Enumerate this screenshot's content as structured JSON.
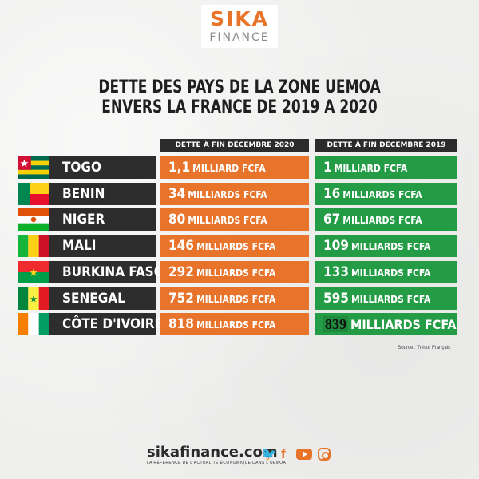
{
  "brand": {
    "name": "SIKA",
    "sub": "FINANCE"
  },
  "title": {
    "line1": "DETTE DES PAYS DE LA ZONE UEMOA",
    "line2": "ENVERS LA FRANCE DE 2019 A 2020"
  },
  "headers": {
    "col2020": "DETTE À FIN DÉCEMBRE 2020",
    "col2019": "DETTE À FIN DÉCEMBRE 2019"
  },
  "colors": {
    "orange": "#e8732a",
    "green": "#249c46",
    "dark": "#2d2d2d"
  },
  "chart_data": {
    "type": "table",
    "title": "DETTE DES PAYS DE LA ZONE UEMOA ENVERS LA FRANCE DE 2019 A 2020",
    "columns": [
      "DETTE À FIN DÉCEMBRE 2020",
      "DETTE À FIN DÉCEMBRE 2019"
    ],
    "rows": [
      {
        "country": "TOGO",
        "flag": "togo-flag",
        "v2020": "1,1",
        "u2020": "MILLIARD FCFA",
        "v2019": "1",
        "u2019": "MILLIARD FCFA"
      },
      {
        "country": "BENIN",
        "flag": "benin-flag",
        "v2020": "34",
        "u2020": "MILLIARDS FCFA",
        "v2019": "16",
        "u2019": "MILLIARDS FCFA"
      },
      {
        "country": "NIGER",
        "flag": "niger-flag",
        "v2020": "80",
        "u2020": "MILLIARDS FCFA",
        "v2019": "67",
        "u2019": "MILLIARDS FCFA"
      },
      {
        "country": "MALI",
        "flag": "mali-flag",
        "v2020": "146",
        "u2020": "MILLIARDS FCFA",
        "v2019": "109",
        "u2019": "MILLIARDS FCFA"
      },
      {
        "country": "BURKINA FASO",
        "flag": "burkina-faso-flag",
        "v2020": "292",
        "u2020": "MILLIARDS FCFA",
        "v2019": "133",
        "u2019": "MILLIARDS FCFA"
      },
      {
        "country": "SENEGAL",
        "flag": "senegal-flag",
        "v2020": "752",
        "u2020": "MILLIARDS FCFA",
        "v2019": "595",
        "u2019": "MILLIARDS FCFA"
      },
      {
        "country": "CÔTE D'IVOIRE",
        "flag": "cote-divoire-flag",
        "v2020": "818",
        "u2020": "MILLIARDS FCFA",
        "v2019": "839",
        "u2019": "MILLIARDS FCFA"
      }
    ]
  },
  "source": "Source : Trésor Français",
  "footer": {
    "site": "sikafinance.com",
    "tagline": "LA RÉFÉRENCE DE L'ACTUALITÉ ÉCONOMIQUE DANS L'UEMOA"
  }
}
